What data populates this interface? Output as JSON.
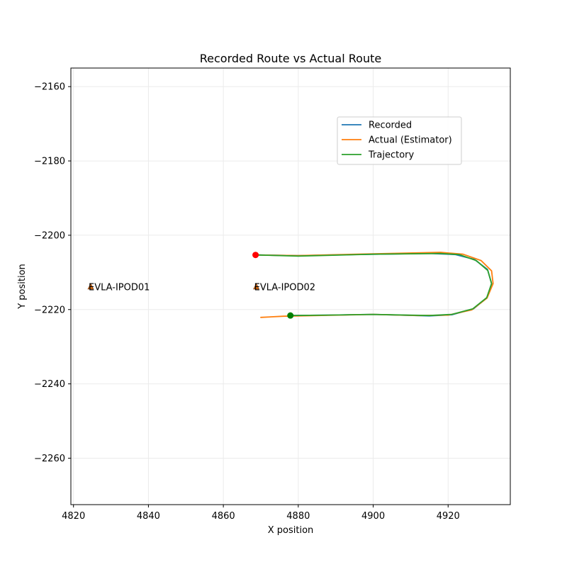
{
  "chart_data": {
    "type": "line",
    "title": "Recorded Route vs Actual Route",
    "xlabel": "X position",
    "ylabel": "Y position",
    "xlim": [
      4819.3,
      4936.6
    ],
    "ylim": [
      -2272.5,
      -2155.0
    ],
    "xticks": [
      4820,
      4840,
      4860,
      4880,
      4900,
      4920
    ],
    "yticks": [
      -2160,
      -2180,
      -2200,
      -2220,
      -2240,
      -2260
    ],
    "grid": true,
    "legend": "upper-right",
    "series": [
      {
        "name": "Recorded",
        "color": "#1f77b4",
        "points": [
          [
            4868.6,
            -2205.3
          ],
          [
            4880,
            -2205.5
          ],
          [
            4900,
            -2205.1
          ],
          [
            4915,
            -2204.9
          ],
          [
            4922,
            -2205.2
          ],
          [
            4927,
            -2206.5
          ],
          [
            4930.5,
            -2209.2
          ],
          [
            4931.6,
            -2213.0
          ],
          [
            4930.4,
            -2216.8
          ],
          [
            4926.8,
            -2219.8
          ],
          [
            4921,
            -2221.4
          ],
          [
            4915,
            -2221.7
          ],
          [
            4900,
            -2221.3
          ],
          [
            4888,
            -2221.5
          ],
          [
            4877.9,
            -2221.6
          ]
        ]
      },
      {
        "name": "Actual (Estimator)",
        "color": "#ff7f0e",
        "points": [
          [
            4868.6,
            -2205.3
          ],
          [
            4880,
            -2205.5
          ],
          [
            4900,
            -2205.0
          ],
          [
            4918,
            -2204.6
          ],
          [
            4924,
            -2205.1
          ],
          [
            4928.8,
            -2206.8
          ],
          [
            4931.6,
            -2209.6
          ],
          [
            4932.0,
            -2213.0
          ],
          [
            4930.4,
            -2216.9
          ],
          [
            4926.3,
            -2220.1
          ],
          [
            4920,
            -2221.5
          ],
          [
            4912,
            -2221.6
          ],
          [
            4900,
            -2221.3
          ],
          [
            4885,
            -2221.6
          ],
          [
            4876,
            -2221.8
          ],
          [
            4870,
            -2222.1
          ]
        ]
      },
      {
        "name": "Trajectory",
        "color": "#2ca02c",
        "points": [
          [
            4868.6,
            -2205.3
          ],
          [
            4880,
            -2205.6
          ],
          [
            4900,
            -2205.1
          ],
          [
            4918,
            -2204.9
          ],
          [
            4923,
            -2205.2
          ],
          [
            4927.5,
            -2206.8
          ],
          [
            4930.6,
            -2209.5
          ],
          [
            4931.6,
            -2213.0
          ],
          [
            4930.3,
            -2216.8
          ],
          [
            4926.6,
            -2219.8
          ],
          [
            4921,
            -2221.3
          ],
          [
            4915,
            -2221.6
          ],
          [
            4900,
            -2221.3
          ],
          [
            4888,
            -2221.5
          ],
          [
            4877.9,
            -2221.6
          ]
        ]
      }
    ],
    "start_marker": {
      "x": 4868.6,
      "y": -2205.3,
      "color": "#ff0000"
    },
    "end_marker": {
      "x": 4877.9,
      "y": -2221.6,
      "color": "#008000"
    },
    "stations": [
      {
        "label": "EVLA-IPOD01",
        "x": 4824.6,
        "y": -2213.8
      },
      {
        "label": "EVLA-IPOD02",
        "x": 4868.8,
        "y": -2213.8
      }
    ],
    "station_colors": {
      "marker": "#8b4513",
      "overlay": "#ff7f0e"
    }
  }
}
